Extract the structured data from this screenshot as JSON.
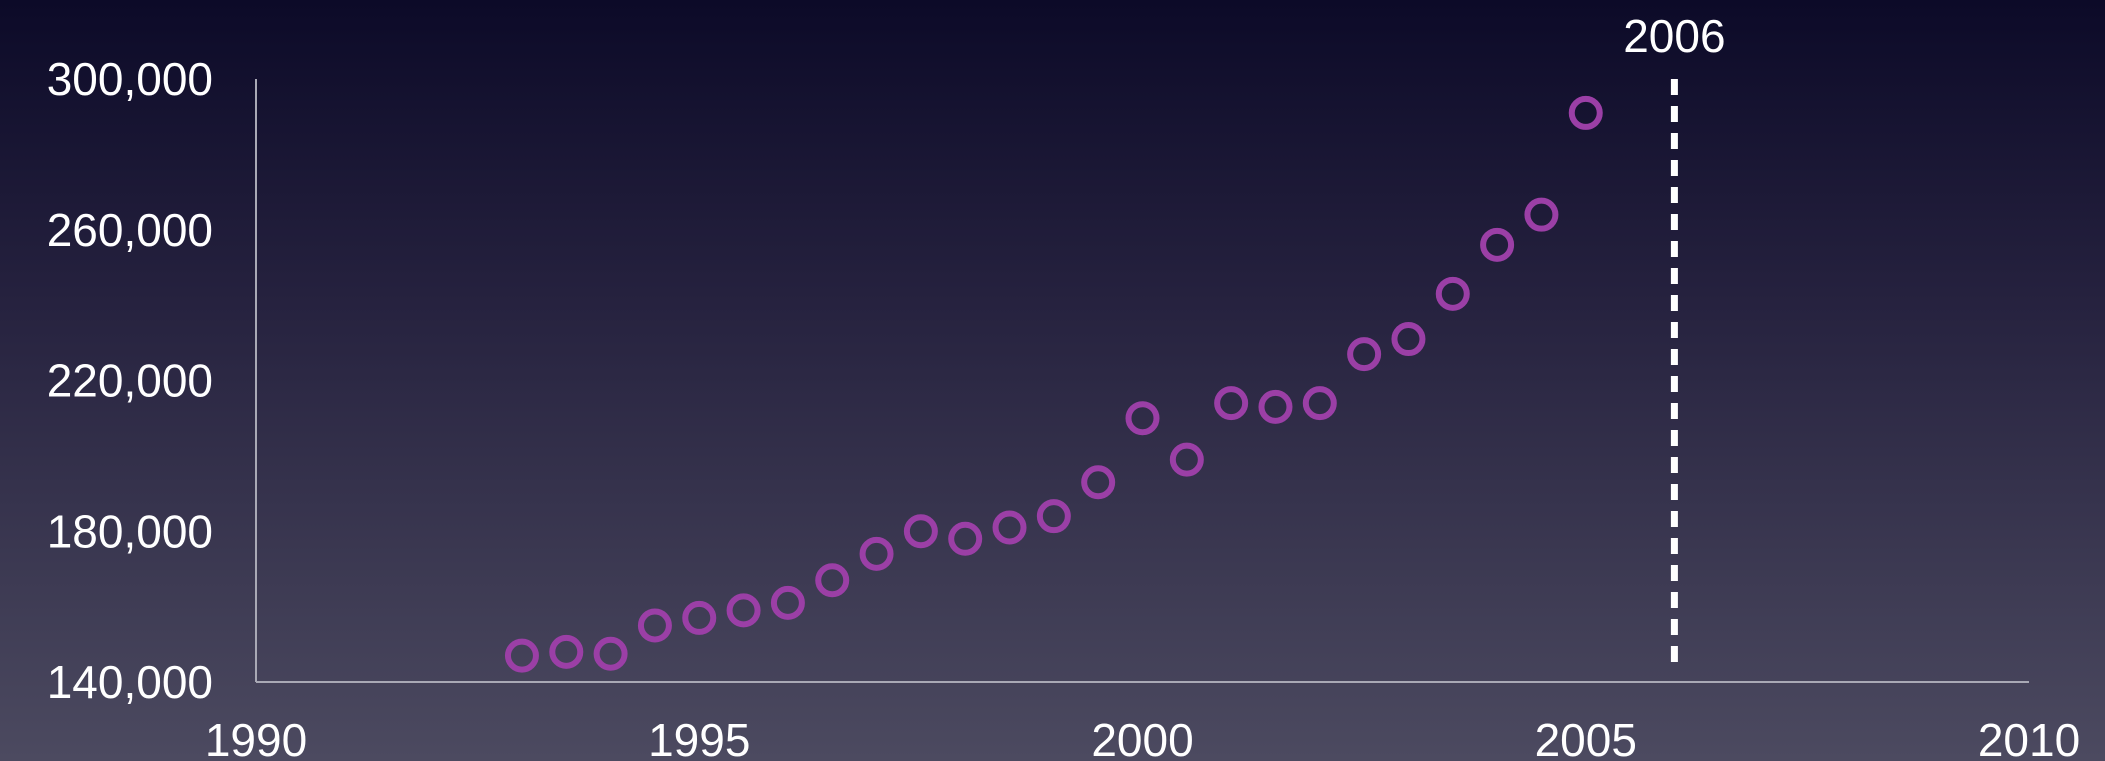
{
  "chart_data": {
    "type": "scatter",
    "title": "",
    "xlabel": "",
    "ylabel": "",
    "xlim": [
      1990,
      2010
    ],
    "ylim": [
      140000,
      300000
    ],
    "x_ticks": [
      1990,
      1995,
      2000,
      2005,
      2010
    ],
    "x_tick_labels": [
      "1990",
      "1995",
      "2000",
      "2005",
      "2010"
    ],
    "y_ticks": [
      140000,
      180000,
      220000,
      260000,
      300000
    ],
    "y_tick_labels": [
      "140,000",
      "180,000",
      "220,000",
      "260,000",
      "300,000"
    ],
    "grid": false,
    "series": [
      {
        "color": "#9b3fa6",
        "points": [
          {
            "x": 1993.0,
            "y": 147000
          },
          {
            "x": 1993.5,
            "y": 148000
          },
          {
            "x": 1994.0,
            "y": 147500
          },
          {
            "x": 1994.5,
            "y": 155000
          },
          {
            "x": 1995.0,
            "y": 157000
          },
          {
            "x": 1995.5,
            "y": 159000
          },
          {
            "x": 1996.0,
            "y": 161000
          },
          {
            "x": 1996.5,
            "y": 167000
          },
          {
            "x": 1997.0,
            "y": 174000
          },
          {
            "x": 1997.5,
            "y": 180000
          },
          {
            "x": 1998.0,
            "y": 178000
          },
          {
            "x": 1998.5,
            "y": 181000
          },
          {
            "x": 1999.0,
            "y": 184000
          },
          {
            "x": 1999.5,
            "y": 193000
          },
          {
            "x": 2000.0,
            "y": 210000
          },
          {
            "x": 2000.5,
            "y": 199000
          },
          {
            "x": 2001.0,
            "y": 214000
          },
          {
            "x": 2001.5,
            "y": 213000
          },
          {
            "x": 2002.0,
            "y": 214000
          },
          {
            "x": 2002.5,
            "y": 227000
          },
          {
            "x": 2003.0,
            "y": 231000
          },
          {
            "x": 2003.5,
            "y": 243000
          },
          {
            "x": 2004.0,
            "y": 256000
          },
          {
            "x": 2004.5,
            "y": 264000
          },
          {
            "x": 2005.0,
            "y": 291000
          }
        ]
      }
    ],
    "annotations": [
      {
        "type": "vline",
        "x": 2006,
        "label": "2006",
        "style": "dashed",
        "color": "#ffffff"
      }
    ]
  }
}
